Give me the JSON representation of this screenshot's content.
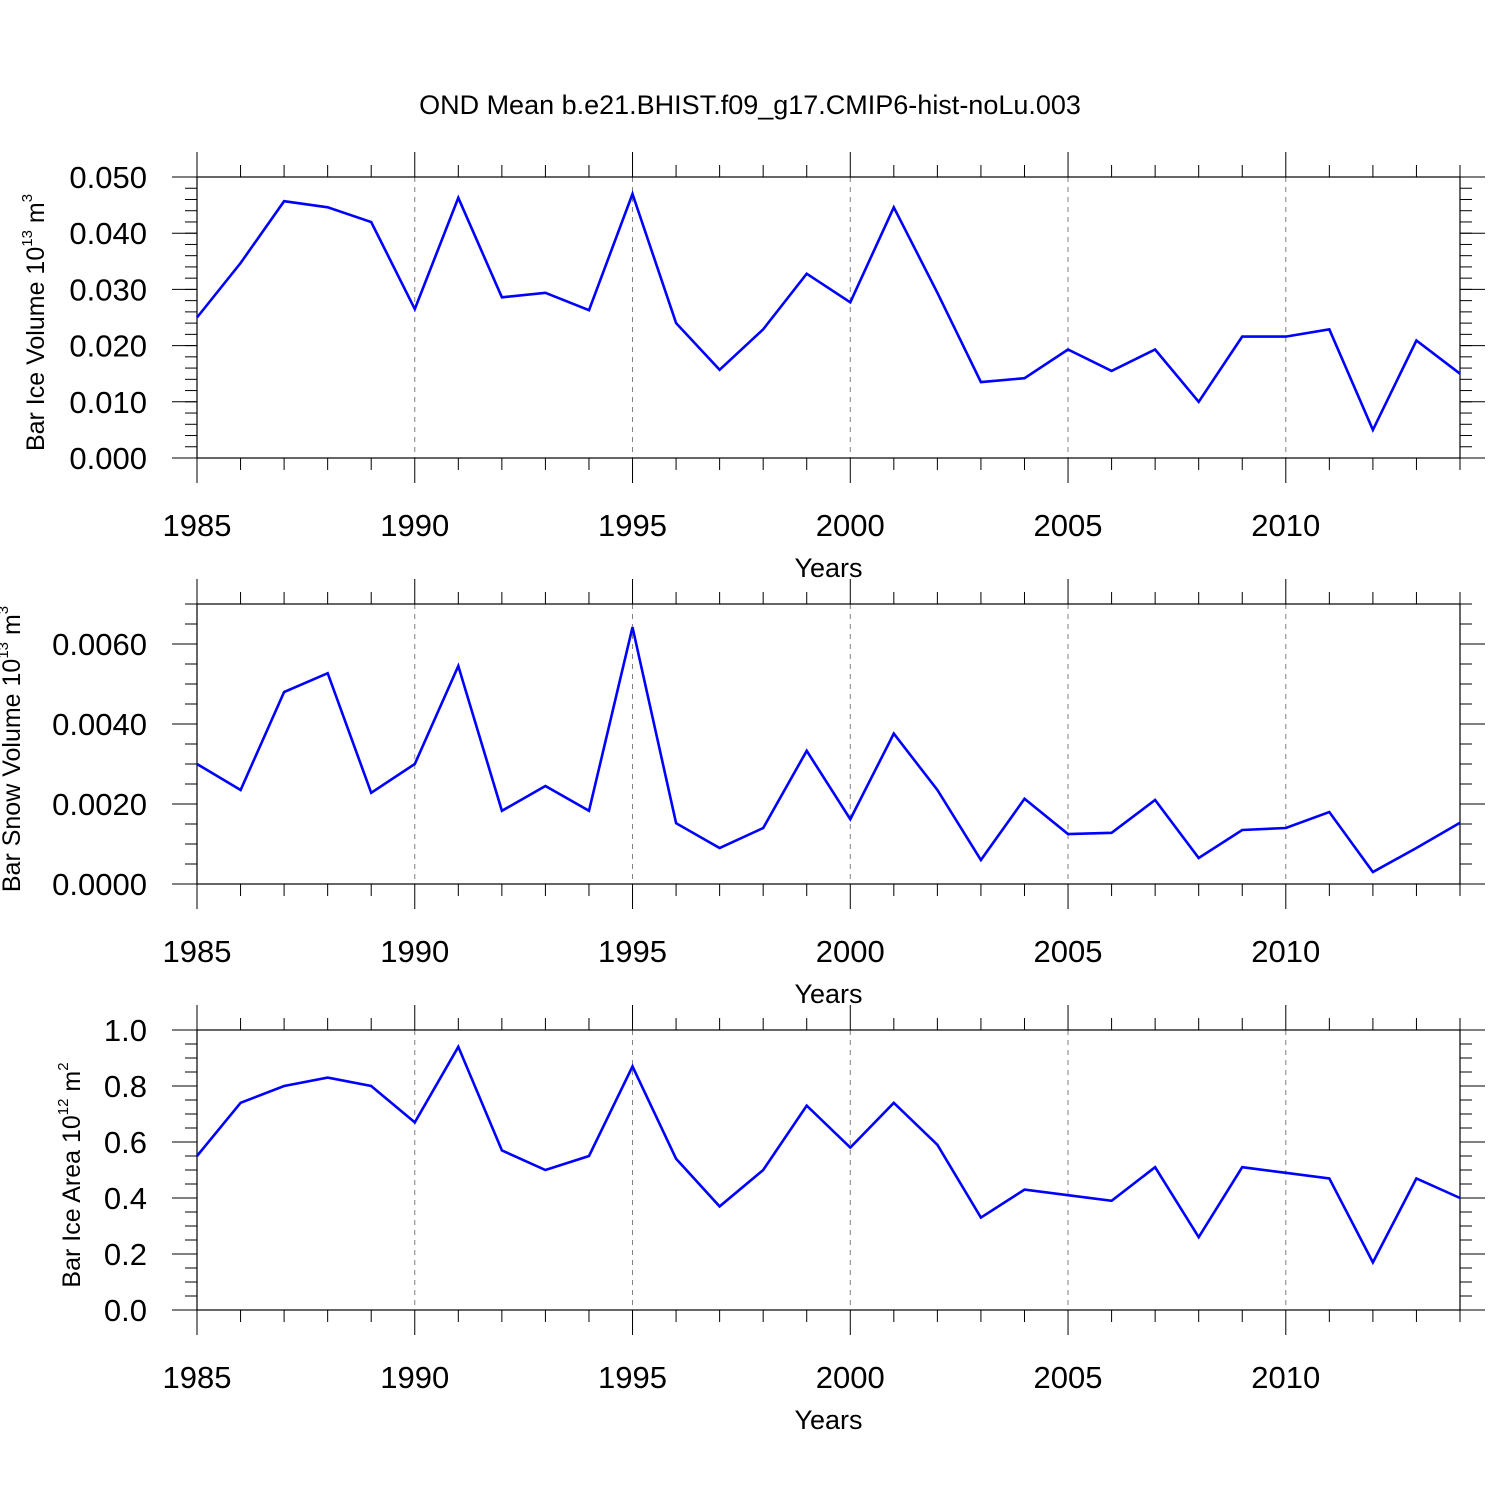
{
  "title": "OND Mean b.e21.BHIST.f09_g17.CMIP6-hist-noLu.003",
  "colors": {
    "series": "#0000ff",
    "axis": "#000000",
    "grid": "#808080"
  },
  "chart_data": [
    {
      "type": "line",
      "title": "OND Mean b.e21.BHIST.f09_g17.CMIP6-hist-noLu.003",
      "xlabel": "Years",
      "ylabel": {
        "text": "Bar Ice Volume 10",
        "sup": "13",
        "unit": " m",
        "unit_sup": "3"
      },
      "xlim": [
        1985,
        2014
      ],
      "ylim": [
        0,
        0.05
      ],
      "x_ticks": [
        "1985",
        "1990",
        "1995",
        "2000",
        "2005",
        "2010"
      ],
      "y_ticks": [
        "0.000",
        "0.010",
        "0.020",
        "0.030",
        "0.040",
        "0.050"
      ],
      "grid": "vertical dashed at major x ticks",
      "x": [
        1985,
        1986,
        1987,
        1988,
        1989,
        1990,
        1991,
        1992,
        1993,
        1994,
        1995,
        1996,
        1997,
        1998,
        1999,
        2000,
        2001,
        2002,
        2003,
        2004,
        2005,
        2006,
        2007,
        2008,
        2009,
        2010,
        2011,
        2012,
        2013,
        2014
      ],
      "series": [
        {
          "values": [
            0.025,
            0.0347,
            0.0457,
            0.0446,
            0.042,
            0.0265,
            0.0463,
            0.0286,
            0.0294,
            0.0263,
            0.047,
            0.024,
            0.0157,
            0.0229,
            0.0328,
            0.0277,
            0.0446,
            0.0294,
            0.0135,
            0.0142,
            0.0193,
            0.0155,
            0.0193,
            0.01,
            0.0216,
            0.0216,
            0.0229,
            0.005,
            0.0209,
            0.015
          ]
        }
      ]
    },
    {
      "type": "line",
      "xlabel": "Years",
      "ylabel": {
        "text": "Bar Snow Volume 10",
        "sup": "13",
        "unit": " m",
        "unit_sup": "3"
      },
      "xlim": [
        1985,
        2014
      ],
      "ylim": [
        0,
        0.007
      ],
      "x_ticks": [
        "1985",
        "1990",
        "1995",
        "2000",
        "2005",
        "2010"
      ],
      "y_ticks": [
        "0.0000",
        "0.0020",
        "0.0040",
        "0.0060"
      ],
      "grid": "vertical dashed at major x ticks",
      "x": [
        1985,
        1986,
        1987,
        1988,
        1989,
        1990,
        1991,
        1992,
        1993,
        1994,
        1995,
        1996,
        1997,
        1998,
        1999,
        2000,
        2001,
        2002,
        2003,
        2004,
        2005,
        2006,
        2007,
        2008,
        2009,
        2010,
        2011,
        2012,
        2013,
        2014
      ],
      "series": [
        {
          "values": [
            0.003,
            0.00235,
            0.0048,
            0.00527,
            0.00228,
            0.003,
            0.00545,
            0.00183,
            0.00245,
            0.00183,
            0.00642,
            0.00152,
            0.0009,
            0.0014,
            0.00333,
            0.00162,
            0.00376,
            0.00235,
            0.0006,
            0.00213,
            0.00125,
            0.00128,
            0.0021,
            0.00065,
            0.00135,
            0.0014,
            0.0018,
            0.0003,
            0.0009,
            0.00153
          ]
        }
      ]
    },
    {
      "type": "line",
      "xlabel": "Years",
      "ylabel": {
        "text": "Bar Ice Area 10",
        "sup": "12",
        "unit": " m",
        "unit_sup": "2"
      },
      "xlim": [
        1985,
        2014
      ],
      "ylim": [
        0,
        1.0
      ],
      "x_ticks": [
        "1985",
        "1990",
        "1995",
        "2000",
        "2005",
        "2010"
      ],
      "y_ticks": [
        "0.0",
        "0.2",
        "0.4",
        "0.6",
        "0.8",
        "1.0"
      ],
      "grid": "vertical dashed at major x ticks",
      "x": [
        1985,
        1986,
        1987,
        1988,
        1989,
        1990,
        1991,
        1992,
        1993,
        1994,
        1995,
        1996,
        1997,
        1998,
        1999,
        2000,
        2001,
        2002,
        2003,
        2004,
        2005,
        2006,
        2007,
        2008,
        2009,
        2010,
        2011,
        2012,
        2013,
        2014
      ],
      "series": [
        {
          "values": [
            0.55,
            0.74,
            0.8,
            0.83,
            0.8,
            0.67,
            0.94,
            0.57,
            0.5,
            0.55,
            0.87,
            0.54,
            0.37,
            0.5,
            0.73,
            0.58,
            0.74,
            0.59,
            0.33,
            0.43,
            0.41,
            0.39,
            0.51,
            0.26,
            0.51,
            0.49,
            0.47,
            0.17,
            0.47,
            0.4
          ]
        }
      ]
    }
  ]
}
